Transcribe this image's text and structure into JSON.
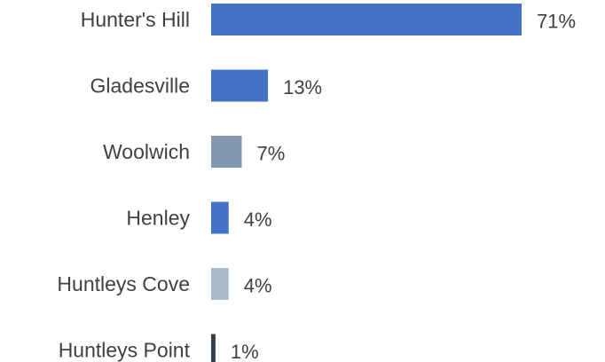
{
  "chart_data": {
    "type": "bar",
    "orientation": "horizontal",
    "title": "",
    "xlabel": "",
    "ylabel": "",
    "categories": [
      "Hunter's Hill",
      "Gladesville",
      "Woolwich",
      "Henley",
      "Huntleys Cove",
      "Huntleys Point"
    ],
    "values": [
      71,
      13,
      7,
      4,
      4,
      1
    ],
    "value_labels": [
      "71%",
      "13%",
      "7%",
      "4%",
      "4%",
      "1%"
    ],
    "colors": [
      "#4472c4",
      "#4472c4",
      "#8497b0",
      "#4472c4",
      "#adb9ca",
      "#333f50"
    ],
    "unit": "%",
    "xlim": [
      0,
      71
    ],
    "grid": false,
    "legend": "none"
  }
}
